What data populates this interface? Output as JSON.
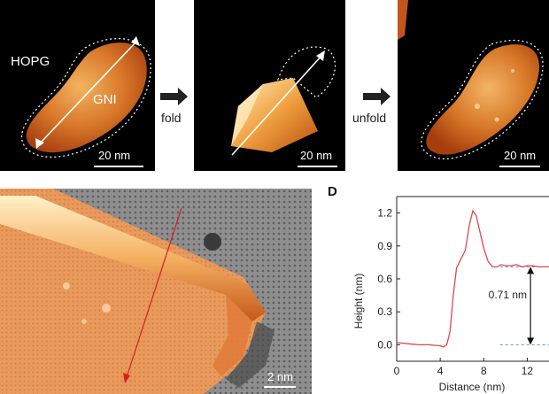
{
  "panels": {
    "flat": {
      "hopg_label": "HOPG",
      "gni_label": "GNI",
      "scale_label": "20 nm"
    },
    "folded": {
      "scale_label": "20 nm"
    },
    "unfolded": {
      "scale_label": "20 nm"
    },
    "stm": {
      "scale_label": "2 nm"
    },
    "d": {
      "letter": "D"
    }
  },
  "transitions": {
    "fold": "fold",
    "unfold": "unfold"
  },
  "colors": {
    "profile": "#e0474c",
    "reference_dash": "#5b8fc7",
    "afm_bright": "#ffe7a6",
    "afm_mid": "#e48a2a",
    "afm_dark": "#b8420e"
  },
  "chart_data": {
    "type": "line",
    "xlabel": "Distance (nm)",
    "ylabel": "Height (nm)",
    "xlim": [
      0,
      14
    ],
    "ylim": [
      -0.15,
      1.35
    ],
    "xticks": [
      0,
      4,
      8,
      12
    ],
    "yticks": [
      "0.0",
      "0.3",
      "0.6",
      "0.9",
      "1.2"
    ],
    "annotation": "0.71 nm",
    "reference_levels": [
      0.0,
      0.71
    ],
    "series": [
      {
        "x": [
          0,
          1,
          2,
          3,
          4,
          4.3,
          4.6,
          4.9,
          5.2,
          5.5,
          5.9,
          6.3,
          6.7,
          7.0,
          7.3,
          7.6,
          8.0,
          8.4,
          8.8,
          9.2,
          9.6,
          10,
          10.5,
          11,
          11.5,
          12,
          12.5,
          13,
          13.5,
          14
        ],
        "y": [
          0.02,
          0.01,
          0.0,
          0.0,
          -0.01,
          -0.02,
          0.0,
          0.12,
          0.45,
          0.7,
          0.78,
          0.86,
          1.1,
          1.22,
          1.18,
          1.05,
          0.88,
          0.76,
          0.71,
          0.71,
          0.73,
          0.72,
          0.72,
          0.73,
          0.71,
          0.72,
          0.72,
          0.71,
          0.71,
          0.71
        ]
      }
    ]
  }
}
